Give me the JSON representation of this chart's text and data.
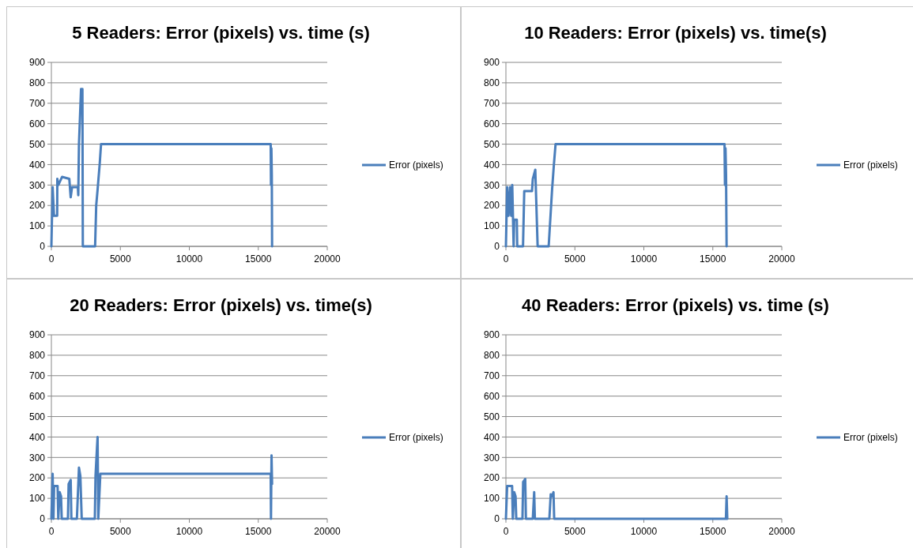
{
  "chart_data": [
    {
      "type": "line",
      "title": "5 Readers:  Error (pixels) vs. time (s)",
      "xlim": [
        0,
        20000
      ],
      "xticks": [
        0,
        5000,
        10000,
        15000,
        20000
      ],
      "ylim": [
        0,
        900
      ],
      "yticks": [
        0,
        100,
        200,
        300,
        400,
        500,
        600,
        700,
        800,
        900
      ],
      "grid": "y",
      "legend": "right",
      "series": [
        {
          "name": "Error (pixels)",
          "color": "#4a7ebb",
          "x": [
            0,
            90,
            190,
            420,
            430,
            500,
            780,
            1300,
            1400,
            1500,
            1920,
            1950,
            2000,
            2150,
            2250,
            2280,
            3170,
            3250,
            3360,
            3500,
            3600,
            15900,
            15920,
            15950,
            15980,
            16000
          ],
          "values": [
            0,
            290,
            150,
            150,
            330,
            300,
            340,
            330,
            240,
            290,
            290,
            250,
            500,
            770,
            770,
            0,
            0,
            200,
            285,
            400,
            500,
            500,
            300,
            480,
            350,
            0
          ]
        }
      ]
    },
    {
      "type": "line",
      "title": "10 Readers:  Error (pixels) vs. time(s)",
      "xlim": [
        0,
        20000
      ],
      "xticks": [
        0,
        5000,
        10000,
        15000,
        20000
      ],
      "ylim": [
        0,
        900
      ],
      "yticks": [
        0,
        100,
        200,
        300,
        400,
        500,
        600,
        700,
        800,
        900
      ],
      "grid": "y",
      "legend": "right",
      "series": [
        {
          "name": "Error (pixels)",
          "color": "#4a7ebb",
          "x": [
            0,
            90,
            190,
            300,
            380,
            460,
            560,
            600,
            790,
            820,
            1240,
            1330,
            1890,
            1950,
            2130,
            2300,
            3100,
            3350,
            3480,
            3600,
            15850,
            15880,
            15920,
            15960,
            16000
          ],
          "values": [
            0,
            290,
            150,
            290,
            150,
            300,
            0,
            130,
            130,
            0,
            0,
            270,
            270,
            330,
            375,
            0,
            0,
            280,
            400,
            500,
            500,
            300,
            480,
            350,
            0
          ]
        }
      ]
    },
    {
      "type": "line",
      "title": "20 Readers:  Error (pixels) vs. time(s)",
      "xlim": [
        0,
        20000
      ],
      "xticks": [
        0,
        5000,
        10000,
        15000,
        20000
      ],
      "ylim": [
        0,
        900
      ],
      "yticks": [
        0,
        100,
        200,
        300,
        400,
        500,
        600,
        700,
        800,
        900
      ],
      "grid": "y",
      "legend": "right",
      "series": [
        {
          "name": "Error (pixels)",
          "color": "#4a7ebb",
          "x": [
            0,
            90,
            150,
            200,
            450,
            500,
            600,
            700,
            750,
            1200,
            1250,
            1400,
            1450,
            1850,
            2000,
            2100,
            2200,
            3150,
            3200,
            3300,
            3350,
            3400,
            3550,
            15900,
            15920,
            15960,
            16000
          ],
          "values": [
            0,
            220,
            0,
            160,
            160,
            0,
            130,
            110,
            0,
            0,
            170,
            190,
            0,
            0,
            250,
            210,
            0,
            0,
            210,
            340,
            400,
            0,
            220,
            220,
            0,
            310,
            170
          ]
        }
      ]
    },
    {
      "type": "line",
      "title": "40 Readers:  Error (pixels) vs. time (s)",
      "xlim": [
        0,
        20000
      ],
      "xticks": [
        0,
        5000,
        10000,
        15000,
        20000
      ],
      "ylim": [
        0,
        900
      ],
      "yticks": [
        0,
        100,
        200,
        300,
        400,
        500,
        600,
        700,
        800,
        900
      ],
      "grid": "y",
      "legend": "right",
      "series": [
        {
          "name": "Error (pixels)",
          "color": "#4a7ebb",
          "x": [
            0,
            90,
            450,
            500,
            600,
            700,
            750,
            1200,
            1250,
            1400,
            1450,
            1950,
            2050,
            2100,
            3150,
            3250,
            3350,
            3450,
            3500,
            15950,
            16000,
            16050
          ],
          "values": [
            0,
            160,
            160,
            0,
            130,
            110,
            0,
            0,
            180,
            195,
            0,
            0,
            130,
            0,
            0,
            120,
            110,
            130,
            0,
            0,
            110,
            0
          ]
        }
      ]
    }
  ]
}
